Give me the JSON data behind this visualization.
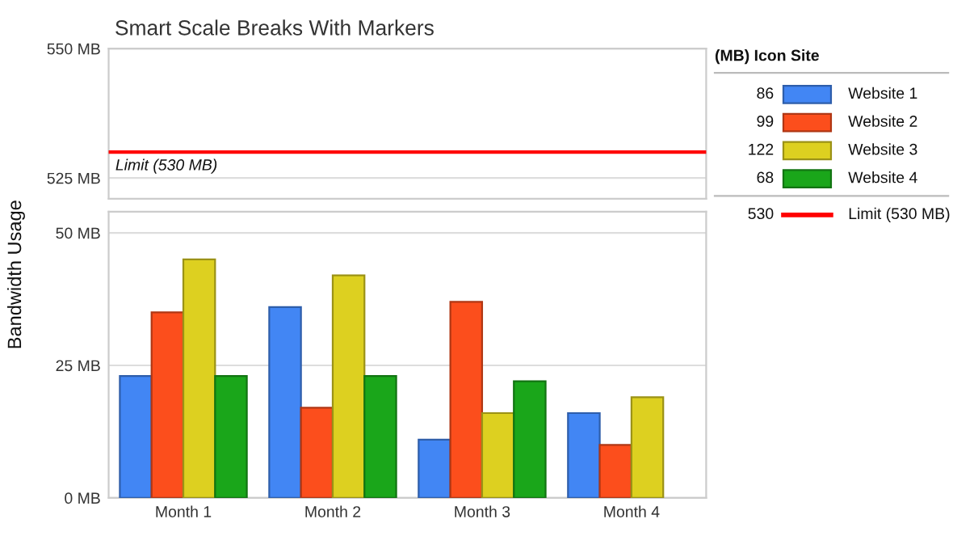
{
  "chart_data": [
    {
      "type": "bar",
      "title": "Smart Scale Breaks With Markers",
      "categories": [
        null,
        null,
        null,
        null
      ],
      "ylim": [
        521,
        550
      ],
      "yticks": [
        {
          "value": 525,
          "label": "525 MB"
        },
        {
          "value": 550,
          "label": "550 MB"
        }
      ],
      "tick_labels": "y",
      "grid": "y",
      "ref_lines": [
        {
          "axis": "y",
          "value": 530,
          "label": "Limit (530 MB)",
          "color": "#ff0000",
          "line_style": "solid"
        }
      ]
    },
    {
      "type": "bar",
      "ylabel": "Bandwidth Usage",
      "categories": [
        "Month 1",
        "Month 2",
        "Month 3",
        "Month 4"
      ],
      "ylim": [
        0,
        54
      ],
      "yticks": [
        {
          "value": 0,
          "label": "0 MB"
        },
        {
          "value": 25,
          "label": "25 MB"
        },
        {
          "value": 50,
          "label": "50 MB"
        }
      ],
      "grid": "y",
      "legend": "right",
      "legend_title": "(MB) Icon Site",
      "annotations": [
        "86",
        "99",
        "122",
        "68",
        "530"
      ],
      "series": [
        {
          "name": "Website 1",
          "color": "#4286f4",
          "values": [
            23,
            36,
            11,
            16
          ]
        },
        {
          "name": "Website 2",
          "color": "#fc4e1c",
          "values": [
            35,
            17,
            37,
            10
          ]
        },
        {
          "name": "Website 3",
          "color": "#ddd020",
          "values": [
            45,
            42,
            16,
            19
          ]
        },
        {
          "name": "Website 4",
          "color": "#1aa61a",
          "values": [
            23,
            23,
            22,
            null
          ]
        }
      ]
    }
  ]
}
